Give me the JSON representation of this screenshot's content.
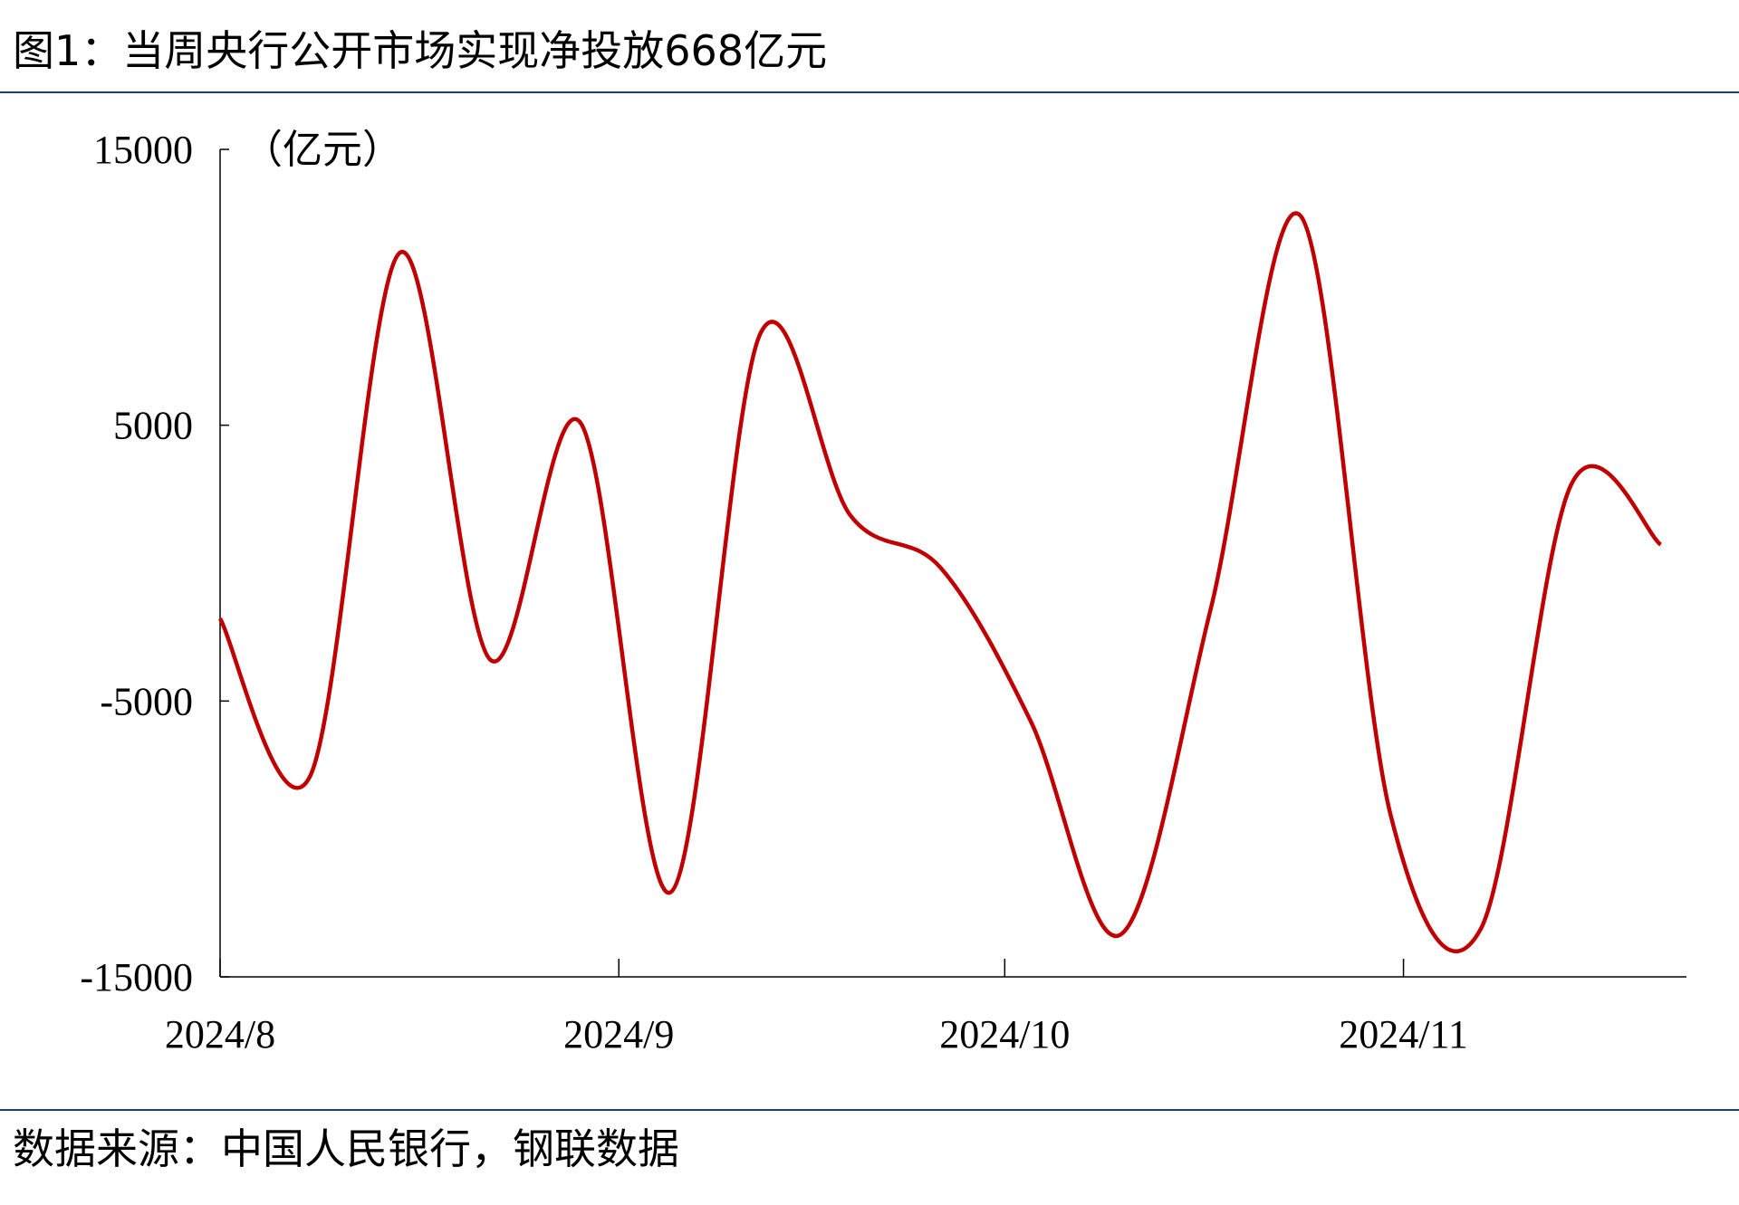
{
  "title": "图1：当周央行公开市场实现净投放668亿元",
  "source": "数据来源：中国人民银行，钢联数据",
  "chart_data": {
    "type": "line",
    "y_unit": "（亿元）",
    "x": [
      0,
      7,
      14,
      21,
      28,
      35,
      42,
      49,
      56,
      63,
      70,
      77,
      84,
      91,
      98,
      105,
      112
    ],
    "xlim": [
      0,
      114
    ],
    "xticks": [
      {
        "value": 0,
        "label": "2024/8"
      },
      {
        "value": 31,
        "label": "2024/9"
      },
      {
        "value": 61,
        "label": "2024/10"
      },
      {
        "value": 92,
        "label": "2024/11"
      }
    ],
    "ylim": [
      -15000,
      15000
    ],
    "yticks": [
      -15000,
      -5000,
      5000,
      15000
    ],
    "series": [
      {
        "color": "#c00000",
        "values": [
          -2010,
          -7720,
          11260,
          -3500,
          5100,
          -11940,
          8320,
          1730,
          -160,
          -5710,
          -13470,
          -1690,
          12590,
          -9130,
          -13270,
          2810,
          668
        ]
      }
    ]
  }
}
